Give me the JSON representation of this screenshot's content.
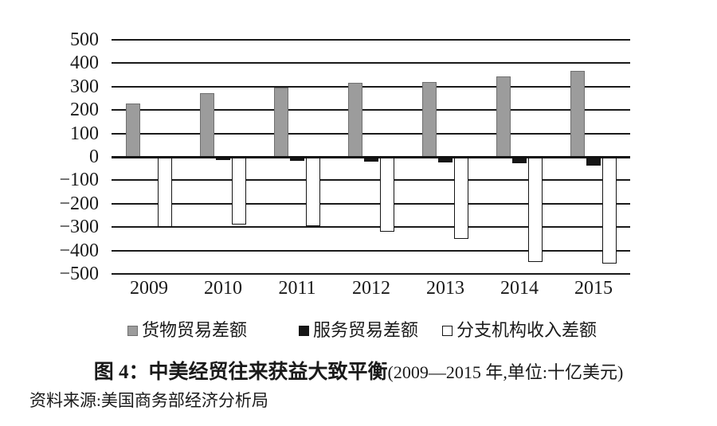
{
  "caption": {
    "title": "图 4：中美经贸往来获益大致平衡",
    "subtitle": "(2009—2015 年,单位:十亿美元)"
  },
  "source": {
    "text": "资料来源:美国商务部经济分析局"
  },
  "chart_data": {
    "type": "bar",
    "title": "图 4：中美经贸往来获益大致平衡",
    "subtitle": "(2009—2015 年,单位:十亿美元)",
    "unit": "十亿美元",
    "categories": [
      "2009",
      "2010",
      "2011",
      "2012",
      "2013",
      "2014",
      "2015"
    ],
    "series": [
      {
        "key": "goods-trade-balance",
        "name": "货物贸易差额",
        "fill": "#9c9c9c",
        "border": "#707070",
        "values": [
          227,
          273,
          295,
          315,
          320,
          343,
          367
        ]
      },
      {
        "key": "services-trade-balance",
        "name": "服务贸易差额",
        "fill": "#161616",
        "border": "#161616",
        "values": [
          -7,
          -14,
          -18,
          -20,
          -24,
          -26,
          -38
        ]
      },
      {
        "key": "branch-income-balance",
        "name": "分支机构收入差额",
        "fill": "#ffffff",
        "border": "#161616",
        "values": [
          -300,
          -290,
          -295,
          -320,
          -350,
          -450,
          -455
        ]
      }
    ],
    "ylim": [
      -500,
      500
    ],
    "yticks": [
      {
        "value": 500,
        "label": "500"
      },
      {
        "value": 400,
        "label": "400"
      },
      {
        "value": 300,
        "label": "300"
      },
      {
        "value": 200,
        "label": "200"
      },
      {
        "value": 100,
        "label": "100"
      },
      {
        "value": 0,
        "label": "0"
      },
      {
        "value": -100,
        "label": "−100"
      },
      {
        "value": -200,
        "label": "−200"
      },
      {
        "value": -300,
        "label": "−300"
      },
      {
        "value": -400,
        "label": "−400"
      },
      {
        "value": -500,
        "label": "−500"
      }
    ],
    "grid": "horizontal",
    "legend_position": "bottom",
    "axis_color": "#1a1a1a"
  }
}
